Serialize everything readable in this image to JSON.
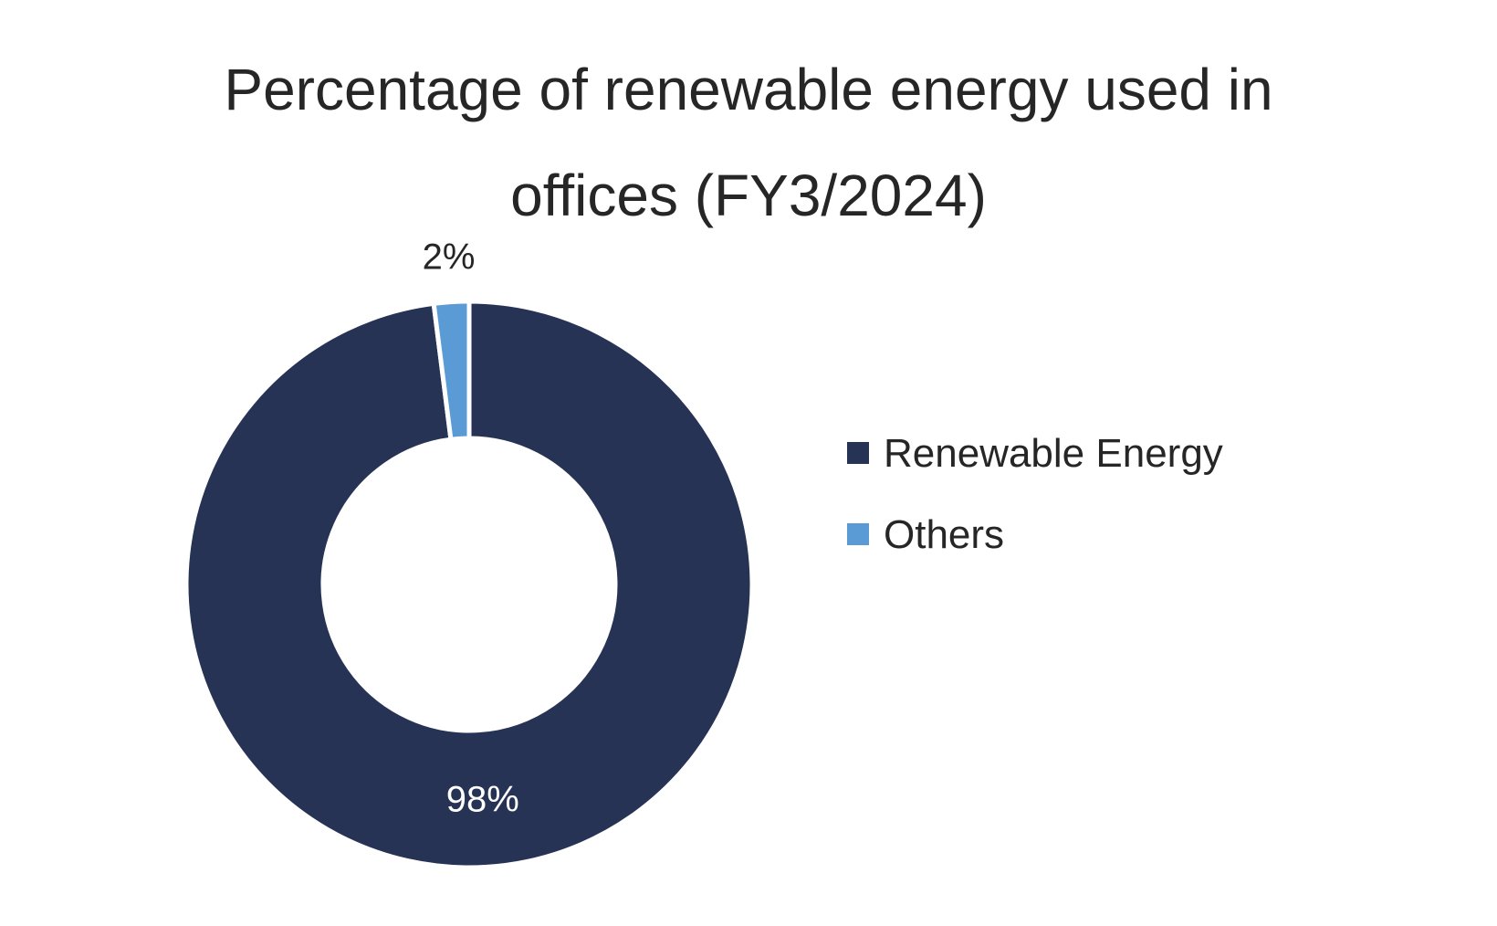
{
  "chart_data": {
    "type": "pie",
    "variant": "donut",
    "title_lines": [
      "Percentage of renewable energy used in",
      "offices (FY3/2024)"
    ],
    "slices": [
      {
        "name": "Renewable Energy",
        "value": 98,
        "label": "98%",
        "color": "#263354",
        "label_color": "#ffffff"
      },
      {
        "name": "Others",
        "value": 2,
        "label": "2%",
        "color": "#5b9bd5",
        "label_color": "#262626"
      }
    ],
    "legend": {
      "placement": "right",
      "entries": [
        "Renewable Energy",
        "Others"
      ]
    }
  }
}
